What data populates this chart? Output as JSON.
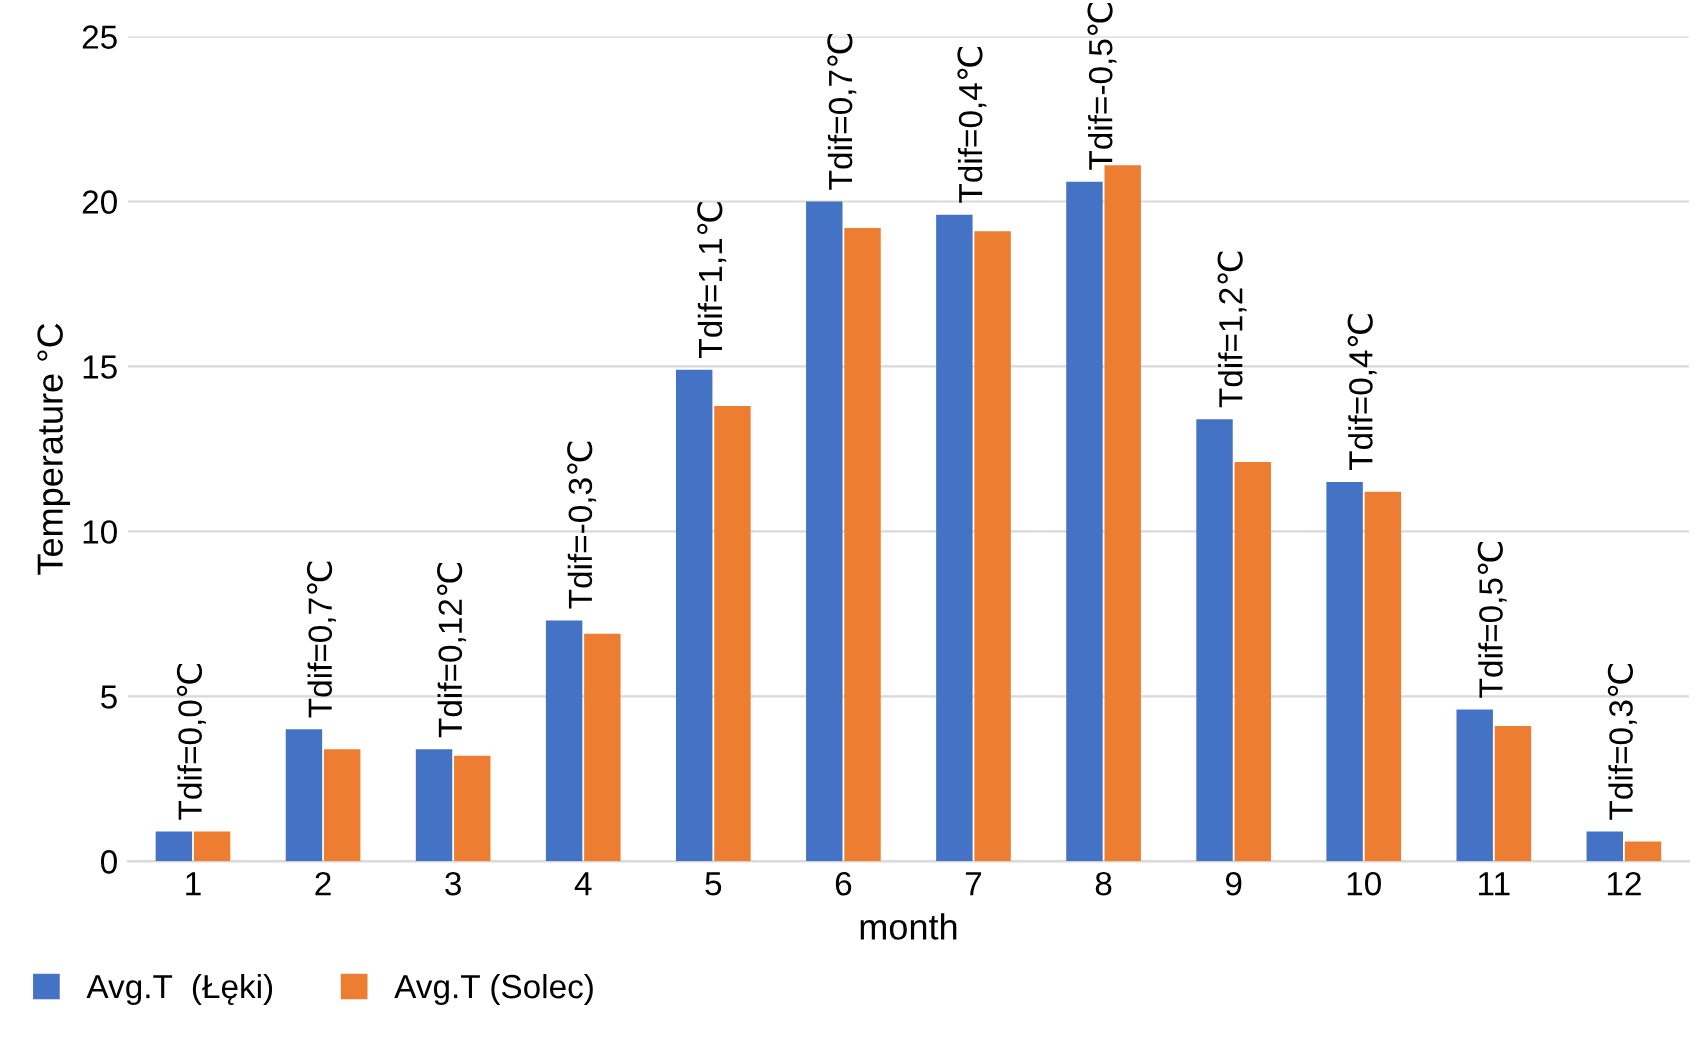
{
  "chart_data": {
    "type": "bar",
    "xlabel": "month",
    "ylabel": "Temperature °C",
    "categories": [
      "1",
      "2",
      "3",
      "4",
      "5",
      "6",
      "7",
      "8",
      "9",
      "10",
      "11",
      "12"
    ],
    "series": [
      {
        "name": "Avg.T  (Łęki)",
        "color": "#4472c4",
        "values": [
          0.9,
          4.0,
          3.4,
          7.3,
          14.9,
          20.0,
          19.6,
          20.6,
          13.4,
          11.5,
          4.6,
          0.9
        ]
      },
      {
        "name": "Avg.T (Solec)",
        "color": "#ed7d31",
        "values": [
          0.9,
          3.4,
          3.2,
          6.9,
          13.8,
          19.2,
          19.1,
          21.1,
          12.1,
          11.2,
          4.1,
          0.6
        ]
      }
    ],
    "ylim": [
      0,
      25
    ],
    "yticks": [
      0,
      5,
      10,
      15,
      20,
      25
    ],
    "grid": "y",
    "legend": "bottom left",
    "annotations": [
      {
        "text": "Tdif=0,0℃",
        "x": "1",
        "y": 0.9
      },
      {
        "text": "Tdif=0,7℃",
        "x": "2",
        "y": 4.0
      },
      {
        "text": "Tdif=0,12℃",
        "x": "3",
        "y": 3.4
      },
      {
        "text": "Tdif=-0,3℃",
        "x": "4",
        "y": 7.3
      },
      {
        "text": "Tdif=1,1℃",
        "x": "5",
        "y": 14.9
      },
      {
        "text": "Tdif=0,7℃",
        "x": "6",
        "y": 20.0
      },
      {
        "text": "Tdif=0,4℃",
        "x": "7",
        "y": 19.6
      },
      {
        "text": "Tdif=-0,5℃",
        "x": "8",
        "y": 20.6
      },
      {
        "text": "Tdif=1,2℃",
        "x": "9",
        "y": 13.4
      },
      {
        "text": "Tdif=0,4℃",
        "x": "10",
        "y": 11.5
      },
      {
        "text": "Tdif=0,5℃",
        "x": "11",
        "y": 4.6
      },
      {
        "text": "Tdif=0,3℃",
        "x": "12",
        "y": 0.9
      }
    ]
  }
}
